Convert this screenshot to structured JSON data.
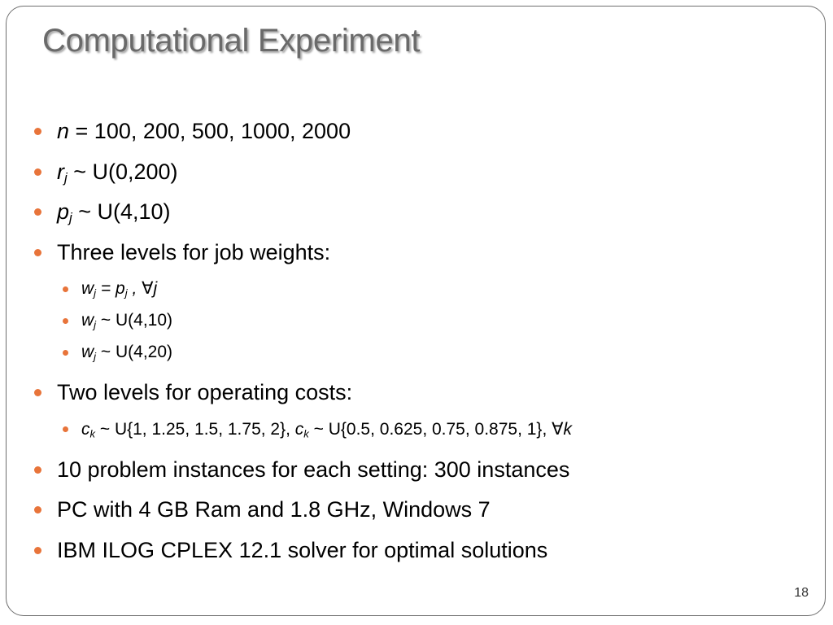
{
  "slide": {
    "title": "Computational Experiment",
    "page_number": "18",
    "bullet_color": "#e8743a",
    "title_color": "#6a6a6a"
  },
  "bullets": {
    "n_var": "n",
    "n_text": " = 100, 200, 500, 1000, 2000",
    "r_var": "r",
    "r_sub": "j",
    "r_text": " ~ U(0,200)",
    "p_var": "p",
    "p_sub": "j",
    "p_text": " ~ U(4,10)",
    "weights_text": "Three levels for job weights:",
    "w1_var": "w",
    "w1_sub": "j",
    "w1_eq": " = ",
    "w1_p": "p",
    "w1_p_sub": "j",
    "w1_forall": " ,  ∀j",
    "w2_var": "w",
    "w2_sub": "j",
    "w2_text": " ~ U(4,10)",
    "w3_var": "w",
    "w3_sub": "j",
    "w3_text": " ~ U(4,20)",
    "costs_text": "Two levels for operating costs:",
    "c1_var": "c",
    "c1_sub": "k",
    "c1_text": " ~ U{1, 1.25, 1.5, 1.75, 2}, ",
    "c2_var": "c",
    "c2_sub": "k",
    "c2_text": " ~ U{0.5, 0.625, 0.75, 0.875, 1}, ∀",
    "c2_k": "k",
    "instances_text": "10 problem instances for each setting: 300 instances",
    "pc_text": "PC with 4 GB Ram and 1.8 GHz, Windows 7",
    "solver_text": "IBM ILOG CPLEX 12.1 solver for optimal solutions"
  }
}
